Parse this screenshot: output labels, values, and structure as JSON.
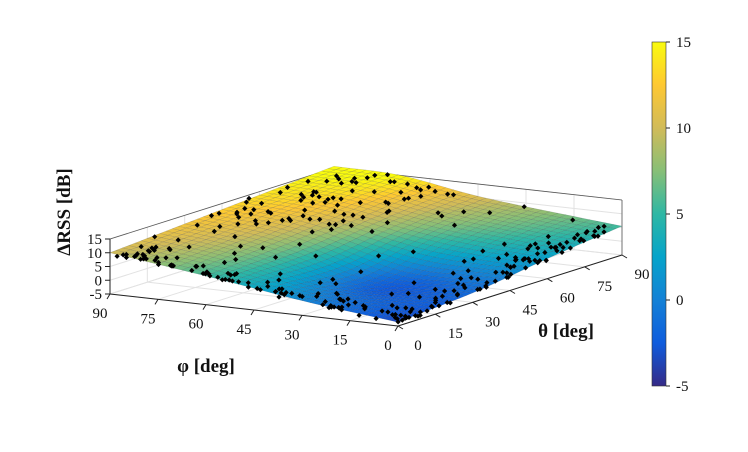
{
  "chart_data": {
    "type": "surface",
    "zlabel": "ΔRSS [dB]",
    "xlabel": "φ [deg]",
    "ylabel": "θ [deg]",
    "x_ticks": [
      "90",
      "75",
      "60",
      "45",
      "30",
      "15",
      "0"
    ],
    "y_ticks": [
      "0",
      "15",
      "30",
      "45",
      "60",
      "75",
      "90"
    ],
    "z_ticks": [
      "15",
      "10",
      "5",
      "0",
      "-5"
    ],
    "colorbar_ticks": [
      "15",
      "10",
      "5",
      "0",
      "-5"
    ],
    "xlim": [
      0,
      90
    ],
    "ylim": [
      0,
      90
    ],
    "zlim": [
      -5,
      15
    ],
    "clim": [
      -5,
      15
    ],
    "colormap": "parula",
    "colormap_colors": [
      "#352a87",
      "#0f5cdd",
      "#1481d6",
      "#06a4ca",
      "#2eb7a4",
      "#87bf77",
      "#d1bb59",
      "#fec832",
      "#f9fb0e"
    ],
    "grid": "on",
    "surface_samples": {
      "description_units": "deg, deg, dB",
      "corners": [
        {
          "phi": 90,
          "theta": 0,
          "dRSS": 10
        },
        {
          "phi": 0,
          "theta": 0,
          "dRSS": -3.5
        },
        {
          "phi": 0,
          "theta": 90,
          "dRSS": 5.5
        },
        {
          "phi": 90,
          "theta": 90,
          "dRSS": 15
        }
      ],
      "valley_min": {
        "phi": 30,
        "theta": 30,
        "dRSS": -4
      }
    },
    "series": [
      {
        "type": "scatter",
        "marker": "diamond",
        "color": "#000000",
        "count": 320
      }
    ]
  }
}
